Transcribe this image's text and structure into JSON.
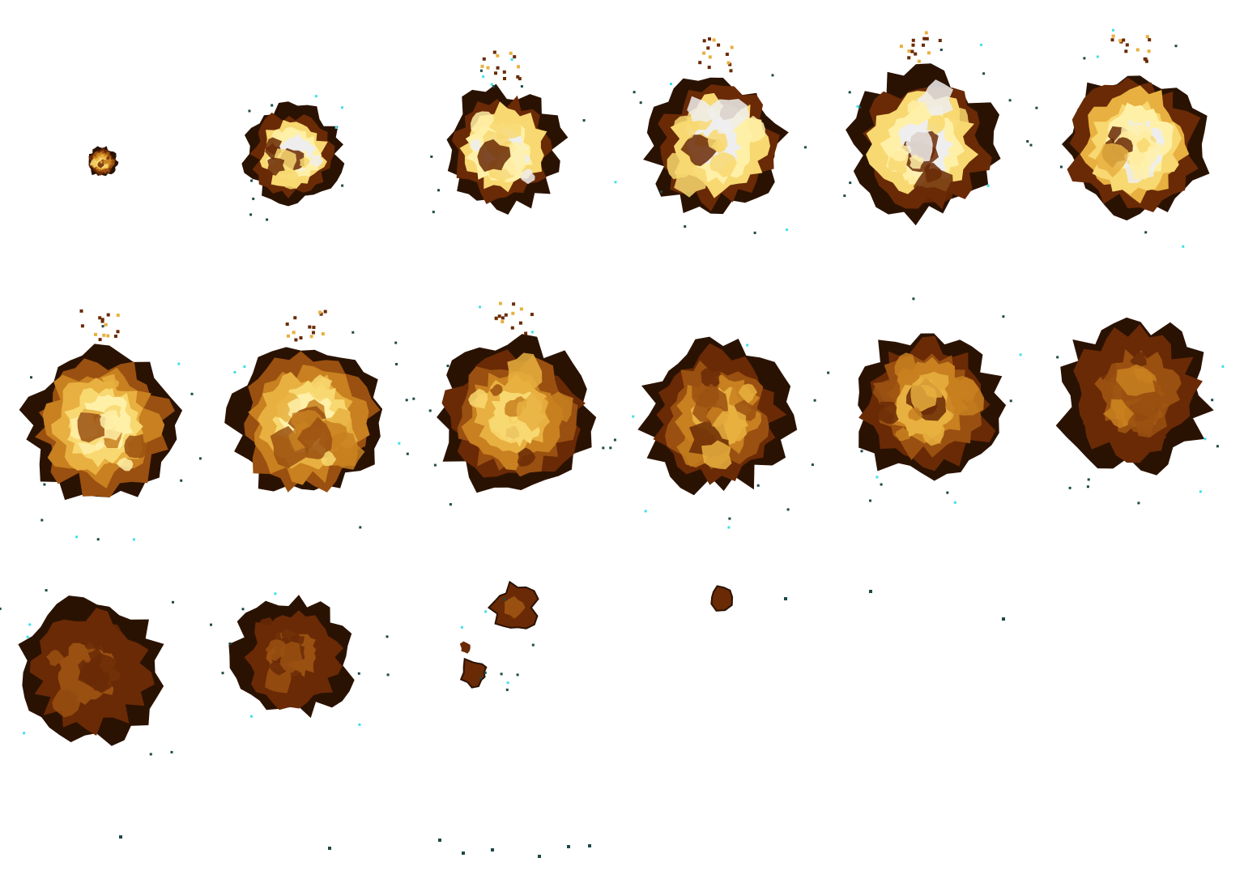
{
  "sprite_sheet": {
    "name": "explosion",
    "columns": 6,
    "rows": 3,
    "frame_count": 15,
    "background": "#ffffff",
    "frames": [
      {
        "index": 1,
        "phase": "ignition",
        "intensity": 0.5,
        "spread": 0.2
      },
      {
        "index": 2,
        "phase": "flash",
        "intensity": 1.0,
        "spread": 0.4
      },
      {
        "index": 3,
        "phase": "flash",
        "intensity": 1.0,
        "spread": 0.62
      },
      {
        "index": 4,
        "phase": "flash",
        "intensity": 1.0,
        "spread": 0.72
      },
      {
        "index": 5,
        "phase": "flash",
        "intensity": 0.96,
        "spread": 0.76
      },
      {
        "index": 6,
        "phase": "fireball",
        "intensity": 0.9,
        "spread": 0.8
      },
      {
        "index": 7,
        "phase": "fireball",
        "intensity": 0.82,
        "spread": 0.84
      },
      {
        "index": 8,
        "phase": "fireball",
        "intensity": 0.72,
        "spread": 0.84
      },
      {
        "index": 9,
        "phase": "fireball",
        "intensity": 0.6,
        "spread": 0.82
      },
      {
        "index": 10,
        "phase": "smoke",
        "intensity": 0.46,
        "spread": 0.82
      },
      {
        "index": 11,
        "phase": "smoke",
        "intensity": 0.3,
        "spread": 0.8
      },
      {
        "index": 12,
        "phase": "smoke",
        "intensity": 0.18,
        "spread": 0.8
      },
      {
        "index": 13,
        "phase": "smoke",
        "intensity": 0.1,
        "spread": 0.78
      },
      {
        "index": 14,
        "phase": "dissipate",
        "intensity": 0.06,
        "spread": 0.7
      },
      {
        "index": 15,
        "phase": "dissipate",
        "intensity": 0.04,
        "spread": 0.4
      }
    ],
    "palette": {
      "core": "#eeeeee",
      "light": "#fff0a8",
      "yellow": "#f8d870",
      "amber": "#e8b040",
      "orange": "#c88020",
      "brown": "#9a5010",
      "dark": "#6a2a06",
      "rim": "#2a1202",
      "speck": "#1c4a46",
      "cyan": "#40e0e8"
    }
  }
}
